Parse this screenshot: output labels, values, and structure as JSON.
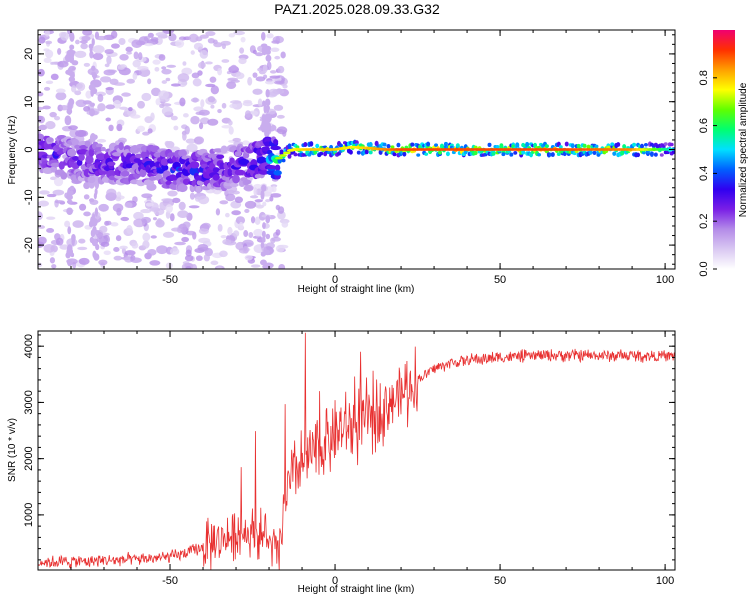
{
  "figure": {
    "title": "PAZ1.2025.028.09.33.G32"
  },
  "colors": {
    "snr_line": "#e83030",
    "spectro_background": "#ffffff",
    "colormap": [
      "#ffffff",
      "#d9c8f2",
      "#b48be8",
      "#7a1fe6",
      "#3000f0",
      "#0060ff",
      "#00e0ff",
      "#00ff70",
      "#60ff00",
      "#ffff00",
      "#ffa000",
      "#ff3000",
      "#f00070"
    ]
  },
  "chart_data": [
    {
      "type": "heatmap",
      "name_on_chart": "spectrogram",
      "title": "",
      "xlabel": "Height of straight line (km)",
      "ylabel": "Frequency (Hz)",
      "xlim": [
        -90,
        103
      ],
      "ylim": [
        -25,
        25
      ],
      "x_ticks": [
        -50,
        0,
        50,
        100
      ],
      "x_tick_labels": [
        "-50",
        "0",
        "50",
        "100"
      ],
      "y_ticks": [
        -20,
        -10,
        0,
        10,
        20
      ],
      "y_tick_labels": [
        "-20",
        "-10",
        "0",
        "10",
        "20"
      ],
      "grid": false,
      "colorbar": {
        "label": "Normalized spectral amplitude",
        "range": [
          0,
          1
        ],
        "ticks": [
          0.0,
          0.2,
          0.4,
          0.6,
          0.8
        ],
        "tick_labels": [
          "0.0",
          "0.2",
          "0.4",
          "0.6",
          "0.8"
        ]
      },
      "signal_ridge": {
        "description_points_x": [
          -90,
          -80,
          -70,
          -60,
          -50,
          -40,
          -30,
          -22,
          -17,
          -13,
          -8,
          -3,
          0,
          5,
          10,
          15,
          20,
          30,
          50,
          70,
          90,
          103
        ],
        "frequency_hz": [
          0,
          -2,
          -3,
          -3,
          -4,
          -4.5,
          -3.5,
          -2,
          -1.8,
          0,
          0,
          0,
          0,
          0.5,
          0.3,
          0,
          0,
          0,
          0,
          0,
          0,
          0
        ],
        "amplitude": [
          0.35,
          0.35,
          0.35,
          0.35,
          0.4,
          0.4,
          0.35,
          0.45,
          0.7,
          0.75,
          0.8,
          0.8,
          0.8,
          0.75,
          0.8,
          0.85,
          0.9,
          0.9,
          0.9,
          0.9,
          0.85,
          0.5
        ]
      }
    },
    {
      "type": "line",
      "name_on_chart": "snr",
      "title": "",
      "xlabel": "Height of straight line (km)",
      "ylabel": "SNR (10 * v/v)",
      "xlim": [
        -90,
        103
      ],
      "ylim": [
        20,
        4270
      ],
      "x_ticks": [
        -50,
        0,
        50,
        100
      ],
      "x_tick_labels": [
        "-50",
        "0",
        "50",
        "100"
      ],
      "y_ticks": [
        1000,
        2000,
        3000,
        4000
      ],
      "y_tick_labels": [
        "1000",
        "2000",
        "3000",
        "4000"
      ],
      "grid": false,
      "series_trend": {
        "x": [
          -90,
          -80,
          -70,
          -60,
          -50,
          -45,
          -40,
          -35,
          -30,
          -25,
          -21,
          -18,
          -17,
          -15,
          -13,
          -10,
          -5,
          0,
          5,
          10,
          15,
          20,
          25,
          30,
          35,
          40,
          50,
          60,
          70,
          80,
          90,
          103
        ],
        "y": [
          160,
          170,
          190,
          210,
          250,
          320,
          420,
          550,
          650,
          700,
          600,
          350,
          280,
          1300,
          1650,
          1900,
          2200,
          2450,
          2550,
          2700,
          2950,
          3150,
          3400,
          3600,
          3700,
          3750,
          3800,
          3830,
          3840,
          3830,
          3830,
          3820
        ]
      },
      "spikes": [
        {
          "x": -28.5,
          "y": 1850
        },
        {
          "x": -24.2,
          "y": 2490
        },
        {
          "x": -15.2,
          "y": 2970
        },
        {
          "x": -9.0,
          "y": 4240
        },
        {
          "x": -4.6,
          "y": 3200
        },
        {
          "x": 7.7,
          "y": 3900
        },
        {
          "x": 6.0,
          "y": 3460
        }
      ]
    }
  ]
}
